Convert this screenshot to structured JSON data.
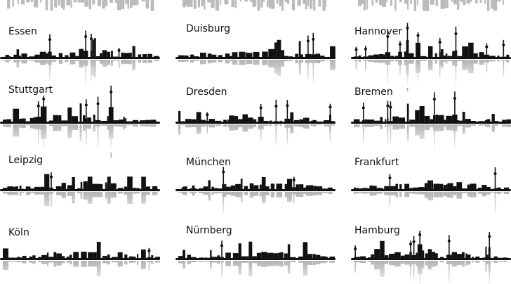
{
  "cities": [
    "Essen",
    "Duisburg",
    "Hannover",
    "Stuttgart",
    "Dresden",
    "Bremen",
    "Leipzig",
    "München",
    "Frankfurt",
    "Köln",
    "Nürnberg",
    "Hamburg"
  ]
}
